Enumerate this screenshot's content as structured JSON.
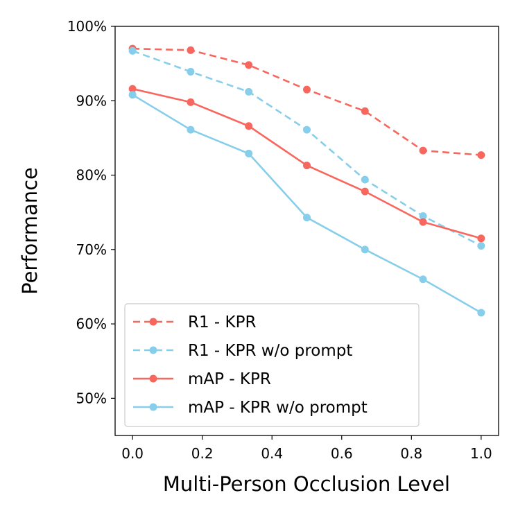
{
  "chart_data": {
    "type": "line",
    "title": "",
    "xlabel": "Multi-Person Occlusion Level",
    "ylabel": "Performance",
    "xlim": [
      -0.05,
      1.05
    ],
    "ylim": [
      45,
      100
    ],
    "xticks": [
      0.0,
      0.2,
      0.4,
      0.6,
      0.8,
      1.0
    ],
    "xtick_labels": [
      "0.0",
      "0.2",
      "0.4",
      "0.6",
      "0.8",
      "1.0"
    ],
    "yticks": [
      50,
      60,
      70,
      80,
      90,
      100
    ],
    "ytick_labels": [
      "50%",
      "60%",
      "70%",
      "80%",
      "90%",
      "100%"
    ],
    "grid": false,
    "legend_position": "lower-left",
    "x": [
      0.0,
      0.1667,
      0.3333,
      0.5,
      0.6667,
      0.8333,
      1.0
    ],
    "series": [
      {
        "name": "R1 - KPR",
        "color": "#F8675E",
        "style": "dashed",
        "values": [
          97.0,
          96.8,
          94.8,
          91.5,
          88.6,
          83.3,
          82.7
        ]
      },
      {
        "name": "R1 - KPR w/o prompt",
        "color": "#87CEEB",
        "style": "dashed",
        "values": [
          96.7,
          93.9,
          91.2,
          86.1,
          79.4,
          74.5,
          70.5
        ]
      },
      {
        "name": "mAP - KPR",
        "color": "#F8675E",
        "style": "solid",
        "values": [
          91.6,
          89.8,
          86.6,
          81.3,
          77.8,
          73.7,
          71.5
        ]
      },
      {
        "name": "mAP - KPR w/o prompt",
        "color": "#87CEEB",
        "style": "solid",
        "values": [
          90.8,
          86.1,
          82.9,
          74.3,
          70.0,
          66.0,
          61.5
        ]
      }
    ]
  }
}
